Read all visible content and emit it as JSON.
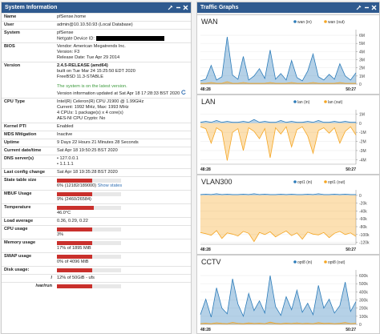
{
  "system_information": {
    "title": "System Information",
    "name": {
      "label": "Name",
      "value": "pfSense.home"
    },
    "user": {
      "label": "User",
      "value": "admin@10.10.50.93 (Local Database)"
    },
    "system": {
      "label": "System",
      "lines": [
        "pfSense",
        "Netgate Device ID:"
      ]
    },
    "bios": {
      "label": "BIOS",
      "lines": [
        "Vendor: American Megatrends Inc.",
        "Version: F3",
        "Release Date: Tue Apr 29 2014"
      ]
    },
    "version": {
      "label": "Version",
      "lines": [
        "2.4.5-RELEASE (amd64)",
        "built on Tue Mar 24 15:25:50 EDT 2020",
        "FreeBSD 11.3-STABLE"
      ],
      "status": "The system is on the latest version.",
      "updated": "Version information updated at Sat Apr 18 17:28:33 BST 2020"
    },
    "cpu_type": {
      "label": "CPU Type",
      "lines": [
        "Intel(R) Celeron(R) CPU J1900 @ 1.99GHz",
        "Current: 1992 MHz, Max: 1993 MHz",
        "4 CPUs: 1 package(s) x 4 core(s)",
        "AES-NI CPU Crypto: No"
      ]
    },
    "kernel_pti": {
      "label": "Kernel PTI",
      "value": "Enabled"
    },
    "mds": {
      "label": "MDS Mitigation",
      "value": "Inactive"
    },
    "uptime": {
      "label": "Uptime",
      "value": "9 Days 22 Hours 21 Minutes 28 Seconds"
    },
    "datetime": {
      "label": "Current date/time",
      "value": "Sat Apr 18 19:50:25 BST 2020"
    },
    "dns": {
      "label": "DNS server(s)",
      "lines": [
        "127.0.0.1",
        "1.1.1.1"
      ]
    },
    "last_config": {
      "label": "Last config change",
      "value": "Sat Apr 18 19:35:28 BST 2020"
    },
    "state_table": {
      "label": "State table size",
      "value": "6% (12182/189000)",
      "link": "Show states"
    },
    "mbuf": {
      "label": "MBUF Usage",
      "value": "9% (2460/26584)"
    },
    "temperature": {
      "label": "Temperature",
      "value": "46.0°C"
    },
    "load": {
      "label": "Load average",
      "value": "0.36, 0.29, 0.22"
    },
    "cpu_usage": {
      "label": "CPU usage",
      "value": "3%"
    },
    "memory": {
      "label": "Memory usage",
      "value": "17% of 1895 MiB"
    },
    "swap": {
      "label": "SWAP usage",
      "value": "0% of 4096 MiB"
    },
    "disk": {
      "label": "Disk usage:"
    },
    "disk_root": {
      "label": "/",
      "value": "12% of 50GiB - ufs"
    },
    "disk_var_run": {
      "label": "/var/run"
    }
  },
  "traffic_graphs": {
    "title": "Traffic Graphs",
    "graphs": [
      {
        "title": "WAN",
        "xticks": [
          "48:28",
          "50:27"
        ],
        "ylim": [
          0,
          6.5
        ],
        "yticks": [
          {
            "value": 0,
            "label": "0"
          },
          {
            "value": 1,
            "label": "1M"
          },
          {
            "value": 2,
            "label": "2M"
          },
          {
            "value": 3,
            "label": "3M"
          },
          {
            "value": 4,
            "label": "4M"
          },
          {
            "value": 5,
            "label": "5M"
          },
          {
            "value": 6,
            "label": "6M"
          }
        ],
        "series": [
          {
            "name": "wan (in)",
            "color": "#2b7bb9",
            "values": [
              0.4,
              0.6,
              2.3,
              0.5,
              0.9,
              5.8,
              1.1,
              0.6,
              3.4,
              0.5,
              1.0,
              1.9,
              0.7,
              4.2,
              0.6,
              1.3,
              0.5,
              2.9,
              0.8,
              0.4,
              1.6,
              3.7,
              0.9,
              0.5,
              1.2,
              0.6,
              2.5,
              1.0,
              0.5,
              1.4
            ]
          },
          {
            "name": "wan (out)",
            "color": "#f5a623",
            "values": [
              0.1,
              0.1,
              0.2,
              0.1,
              0.1,
              0.3,
              0.1,
              0.1,
              0.2,
              0.1,
              0.1,
              0.1,
              0.1,
              0.2,
              0.1,
              0.1,
              0.1,
              0.2,
              0.1,
              0.1,
              0.1,
              0.2,
              0.1,
              0.1,
              0.1,
              0.1,
              0.2,
              0.1,
              0.1,
              0.1
            ]
          }
        ]
      },
      {
        "title": "LAN",
        "xticks": [
          "48:28",
          "50:27"
        ],
        "ylim": [
          -4.5,
          1.3
        ],
        "yticks": [
          {
            "value": 1,
            "label": "1M"
          },
          {
            "value": 0,
            "label": "0"
          },
          {
            "value": -1,
            "label": "-1M"
          },
          {
            "value": -2,
            "label": "-2M"
          },
          {
            "value": -3,
            "label": "-3M"
          },
          {
            "value": -4,
            "label": "-4M"
          }
        ],
        "series": [
          {
            "name": "lan (in)",
            "color": "#2b7bb9",
            "values": [
              0.1,
              0.2,
              0.1,
              0.3,
              0.1,
              0.2,
              0.1,
              0.1,
              0.2,
              0.1,
              0.4,
              0.1,
              0.2,
              0.1,
              0.1,
              0.3,
              0.1,
              0.2,
              0.1,
              0.1,
              0.2,
              0.1,
              0.3,
              0.1,
              0.1,
              0.2,
              0.1,
              0.2,
              0.1,
              0.1
            ]
          },
          {
            "name": "lan (out)",
            "color": "#f5a623",
            "values": [
              -0.4,
              -0.6,
              -2.2,
              -0.5,
              -0.9,
              -4.1,
              -1.0,
              -0.6,
              -3.0,
              -0.5,
              -0.9,
              -1.7,
              -0.6,
              -3.8,
              -0.5,
              -1.2,
              -0.4,
              -2.6,
              -0.7,
              -0.4,
              -1.4,
              -3.3,
              -0.8,
              -0.5,
              -1.1,
              -0.5,
              -2.2,
              -0.9,
              -0.4,
              -1.3
            ]
          }
        ]
      },
      {
        "title": "VLAN300",
        "xticks": [
          "48:28",
          "50:27"
        ],
        "ylim": [
          -125,
          10
        ],
        "yticks": [
          {
            "value": 0,
            "label": "0"
          },
          {
            "value": -20,
            "label": "-20k"
          },
          {
            "value": -40,
            "label": "-40k"
          },
          {
            "value": -60,
            "label": "-60k"
          },
          {
            "value": -80,
            "label": "-80k"
          },
          {
            "value": -100,
            "label": "-100k"
          },
          {
            "value": -120,
            "label": "-120k"
          }
        ],
        "series": [
          {
            "name": "opt1 (in)",
            "color": "#2b7bb9",
            "values": [
              2,
              3,
              2,
              4,
              2,
              3,
              2,
              2,
              3,
              2,
              4,
              2,
              3,
              2,
              2,
              3,
              2,
              3,
              2,
              2,
              3,
              2,
              4,
              2,
              2,
              3,
              2,
              3,
              2,
              2
            ]
          },
          {
            "name": "opt1 (out)",
            "color": "#f5a623",
            "values": [
              -95,
              -98,
              -102,
              -90,
              -110,
              -96,
              -99,
              -104,
              -92,
              -97,
              -118,
              -95,
              -100,
              -93,
              -106,
              -98,
              -91,
              -103,
              -96,
              -112,
              -94,
              -99,
              -101,
              -95,
              -108,
              -97,
              -92,
              -100,
              -96,
              -105
            ]
          }
        ]
      },
      {
        "title": "CCTV",
        "xticks": [
          "48:28",
          "50:27"
        ],
        "ylim": [
          0,
          650
        ],
        "yticks": [
          {
            "value": 0,
            "label": "0"
          },
          {
            "value": 100,
            "label": "100k"
          },
          {
            "value": 200,
            "label": "200k"
          },
          {
            "value": 300,
            "label": "300k"
          },
          {
            "value": 400,
            "label": "400k"
          },
          {
            "value": 500,
            "label": "500k"
          },
          {
            "value": 600,
            "label": "600k"
          }
        ],
        "series": [
          {
            "name": "opt8 (in)",
            "color": "#2b7bb9",
            "values": [
              120,
              310,
              90,
              450,
              200,
              130,
              560,
              250,
              100,
              380,
              170,
              290,
              140,
              600,
              220,
              110,
              340,
              180,
              420,
              150,
              260,
              120,
              480,
              200,
              310,
              140,
              230,
              520,
              160,
              280
            ]
          },
          {
            "name": "opt8 (out)",
            "color": "#f5a623",
            "values": [
              10,
              15,
              8,
              20,
              12,
              9,
              25,
              14,
              8,
              18,
              11,
              15,
              9,
              28,
              13,
              8,
              16,
              11,
              19,
              10,
              14,
              9,
              22,
              12,
              15,
              9,
              13,
              24,
              10,
              14
            ]
          }
        ]
      }
    ]
  }
}
